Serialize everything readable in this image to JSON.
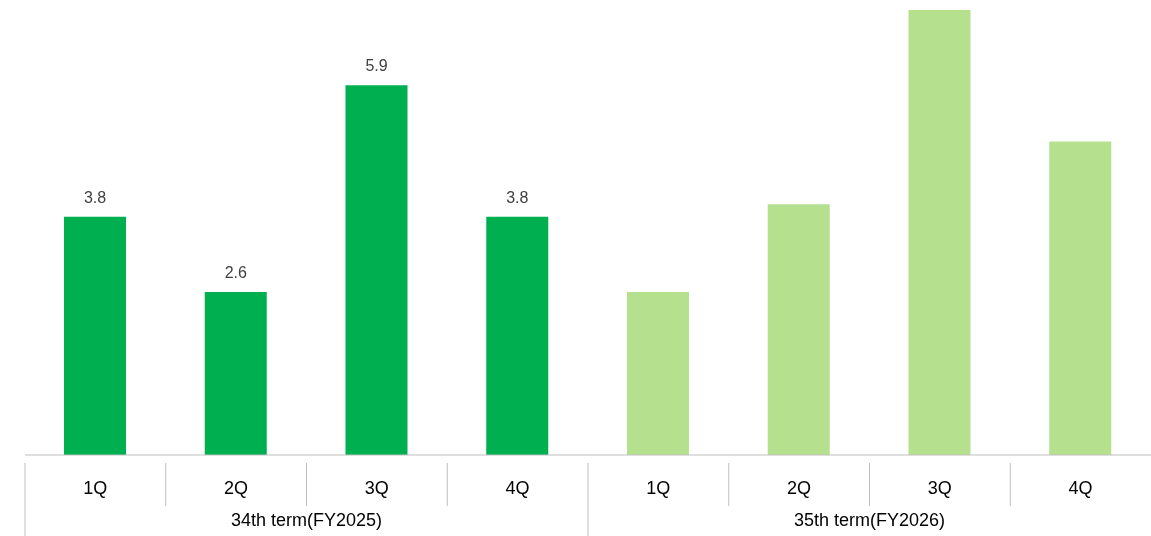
{
  "chart_data": {
    "type": "bar",
    "categories": [
      "1Q",
      "2Q",
      "3Q",
      "4Q",
      "1Q",
      "2Q",
      "3Q",
      "4Q"
    ],
    "values": [
      3.8,
      2.6,
      5.9,
      3.8,
      2.6,
      4.0,
      7.1,
      5.0
    ],
    "colors": [
      "#00b050",
      "#00b050",
      "#00b050",
      "#00b050",
      "#b5e08d",
      "#b5e08d",
      "#b5e08d",
      "#b5e08d"
    ],
    "value_labels": [
      "3.8",
      "2.6",
      "5.9",
      "3.8",
      null,
      null,
      null,
      null
    ],
    "annotations": [
      "34th term(FY2025)",
      "35th term(FY2026)"
    ],
    "grid": false,
    "legend": false
  }
}
